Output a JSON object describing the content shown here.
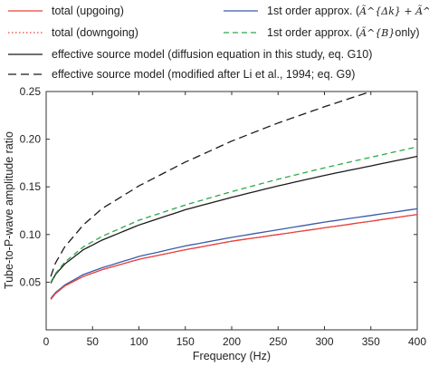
{
  "chart_data": {
    "type": "line",
    "xlabel": "Frequency (Hz)",
    "ylabel": "Tube-to-P-wave amplitude ratio",
    "xlim": [
      0,
      400
    ],
    "ylim": [
      0,
      0.25
    ],
    "xticks": [
      0,
      50,
      100,
      150,
      200,
      250,
      300,
      350,
      400
    ],
    "yticks": [
      0.05,
      0.1,
      0.15,
      0.2,
      0.25
    ],
    "xtick_labels": [
      "0",
      "50",
      "100",
      "150",
      "200",
      "250",
      "300",
      "350",
      "400"
    ],
    "ytick_labels": [
      "0.05",
      "0.10",
      "0.15",
      "0.20",
      "0.25"
    ],
    "grid": false,
    "legend_position": "top",
    "series": [
      {
        "name": "total (upgoing)",
        "color": "#e8413c",
        "dash": "solid",
        "x": [
          5,
          10,
          20,
          40,
          60,
          100,
          150,
          200,
          250,
          300,
          350,
          400
        ],
        "y": [
          0.032,
          0.038,
          0.046,
          0.056,
          0.063,
          0.074,
          0.084,
          0.093,
          0.1,
          0.107,
          0.114,
          0.121
        ]
      },
      {
        "name": "total (downgoing)",
        "color": "#e8413c",
        "dash": "dotted",
        "x": [
          5,
          10,
          20,
          40,
          60,
          100,
          150,
          200,
          250,
          300,
          350,
          400
        ],
        "y": [
          0.032,
          0.038,
          0.046,
          0.056,
          0.063,
          0.074,
          0.084,
          0.093,
          0.1,
          0.107,
          0.114,
          0.121
        ]
      },
      {
        "name_prefix": "1st order approx. (",
        "name_math": "Ã^{Δk} + Ã^{B}",
        "name_suffix": ")",
        "color": "#3b5ba8",
        "dash": "solid",
        "x": [
          5,
          10,
          20,
          40,
          60,
          100,
          150,
          200,
          250,
          300,
          350,
          400
        ],
        "y": [
          0.033,
          0.039,
          0.047,
          0.058,
          0.065,
          0.077,
          0.088,
          0.097,
          0.105,
          0.113,
          0.12,
          0.127
        ]
      },
      {
        "name_prefix": "1st order approx. (",
        "name_math": "Ã^{B}",
        "name_suffix": "only)",
        "color": "#2ba84a",
        "dash": "dashed",
        "x": [
          5,
          10,
          20,
          40,
          60,
          100,
          150,
          200,
          250,
          300,
          350,
          400
        ],
        "y": [
          0.05,
          0.059,
          0.071,
          0.087,
          0.098,
          0.115,
          0.131,
          0.145,
          0.158,
          0.17,
          0.181,
          0.192
        ]
      },
      {
        "name": "effective source model (diffusion equation in this study, eq. G10)",
        "color": "#1a1a1a",
        "dash": "solid",
        "x": [
          5,
          10,
          20,
          40,
          60,
          100,
          150,
          200,
          250,
          300,
          350,
          400
        ],
        "y": [
          0.049,
          0.058,
          0.069,
          0.084,
          0.094,
          0.11,
          0.126,
          0.139,
          0.151,
          0.162,
          0.172,
          0.182
        ]
      },
      {
        "name": "effective source model (modified after Li et al., 1994; eq. G9)",
        "color": "#1a1a1a",
        "dash": "longdash",
        "x": [
          5,
          10,
          20,
          40,
          60,
          100,
          150,
          200,
          250,
          300,
          350,
          400
        ],
        "y": [
          0.056,
          0.07,
          0.087,
          0.11,
          0.127,
          0.151,
          0.176,
          0.198,
          0.217,
          0.234,
          0.25,
          0.265
        ]
      }
    ]
  }
}
